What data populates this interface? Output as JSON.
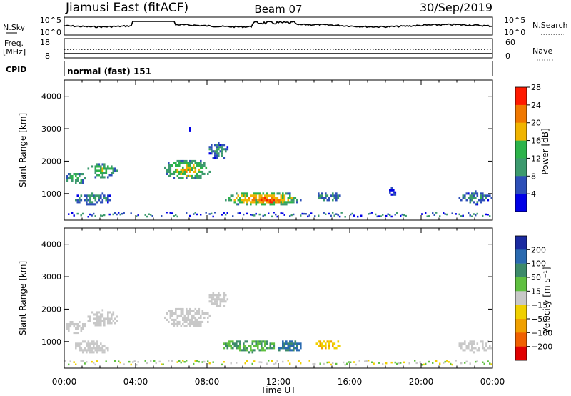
{
  "header": {
    "station": "Jiamusi East (fitACF)",
    "beam": "Beam 07",
    "date": "30/Sep/2019"
  },
  "status_panel": {
    "nsky_label": "N.Sky",
    "nsky_ticks": [
      "10^5",
      "10^0"
    ],
    "nsearch_label": "N.Search",
    "nsearch_ticks": [
      "10^5",
      "10^0"
    ],
    "freq_label": "Freq.",
    "freq_unit": "[MHz]",
    "freq_ticks": [
      "18",
      "8"
    ],
    "nave_label": "Nave",
    "nave_ticks": [
      "60",
      "0"
    ],
    "cpid_label": "CPID",
    "cpid_value": "normal (fast) 151"
  },
  "chart_data": [
    {
      "type": "heatmap",
      "name": "power",
      "ylabel": "Slant Range [km]",
      "yticks": [
        "1000",
        "2000",
        "3000",
        "4000"
      ],
      "ylim": [
        180,
        4500
      ],
      "colorbar_label": "Power [dB]",
      "colorbar_ticks": [
        "4",
        "8",
        "12",
        "16",
        "20",
        "24",
        "28"
      ],
      "colors": [
        "#0000e6",
        "#2d4fb8",
        "#3c9a6e",
        "#2cb34a",
        "#f0b400",
        "#f07800",
        "#ff1a00"
      ],
      "echo_regions": [
        {
          "t": [
            0.0,
            1.2
          ],
          "r": [
            1300,
            1700
          ],
          "level": 3
        },
        {
          "t": [
            1.2,
            3.0
          ],
          "r": [
            1500,
            2000
          ],
          "level": 3
        },
        {
          "t": [
            0.5,
            2.6
          ],
          "r": [
            650,
            1100
          ],
          "level": 2
        },
        {
          "t": [
            5.5,
            8.2
          ],
          "r": [
            1450,
            2100
          ],
          "level": 4
        },
        {
          "t": [
            8.0,
            9.2
          ],
          "r": [
            2100,
            2600
          ],
          "level": 2
        },
        {
          "t": [
            6.9,
            7.1
          ],
          "r": [
            2950,
            3050
          ],
          "level": 1
        },
        {
          "t": [
            8.8,
            13.3
          ],
          "r": [
            650,
            1100
          ],
          "level": 5
        },
        {
          "t": [
            10.6,
            12.4
          ],
          "r": [
            700,
            900
          ],
          "level": 6
        },
        {
          "t": [
            14.0,
            15.5
          ],
          "r": [
            800,
            1100
          ],
          "level": 2
        },
        {
          "t": [
            18.0,
            18.6
          ],
          "r": [
            900,
            1200
          ],
          "level": 1
        },
        {
          "t": [
            22.0,
            24.0
          ],
          "r": [
            700,
            1100
          ],
          "level": 2
        }
      ]
    },
    {
      "type": "heatmap",
      "name": "velocity",
      "xlabel": "Time UT",
      "xticks": [
        "00:00",
        "04:00",
        "08:00",
        "12:00",
        "16:00",
        "20:00",
        "00:00"
      ],
      "xlim": [
        0,
        24
      ],
      "ylabel": "Slant Range [km]",
      "yticks": [
        "1000",
        "2000",
        "3000",
        "4000"
      ],
      "ylim": [
        180,
        4500
      ],
      "colorbar_label": "Velocity [m s⁻¹]",
      "colorbar_ticks": [
        "200",
        "100",
        "50",
        "15",
        "−15",
        "−50",
        "−100",
        "−200"
      ],
      "colors": [
        "#1a2aa0",
        "#2a6ab0",
        "#3c8a6a",
        "#60c040",
        "#c8c8c8",
        "#f0d000",
        "#f0a000",
        "#f06000",
        "#e00000"
      ],
      "echo_regions": [
        {
          "t": [
            0.0,
            1.2
          ],
          "r": [
            1300,
            1700
          ],
          "v": 0
        },
        {
          "t": [
            1.2,
            3.0
          ],
          "r": [
            1500,
            2000
          ],
          "v": 0
        },
        {
          "t": [
            0.5,
            2.6
          ],
          "r": [
            650,
            1100
          ],
          "v": 0
        },
        {
          "t": [
            5.5,
            8.2
          ],
          "r": [
            1450,
            2100
          ],
          "v": 0
        },
        {
          "t": [
            8.0,
            9.2
          ],
          "r": [
            2100,
            2600
          ],
          "v": 0
        },
        {
          "t": [
            8.8,
            11.8
          ],
          "r": [
            700,
            1100
          ],
          "v": 30
        },
        {
          "t": [
            11.8,
            13.3
          ],
          "r": [
            700,
            1100
          ],
          "v": 80
        },
        {
          "t": [
            14.0,
            15.5
          ],
          "r": [
            800,
            1100
          ],
          "v": -30
        },
        {
          "t": [
            22.0,
            24.0
          ],
          "r": [
            700,
            1100
          ],
          "v": 0
        }
      ]
    }
  ]
}
